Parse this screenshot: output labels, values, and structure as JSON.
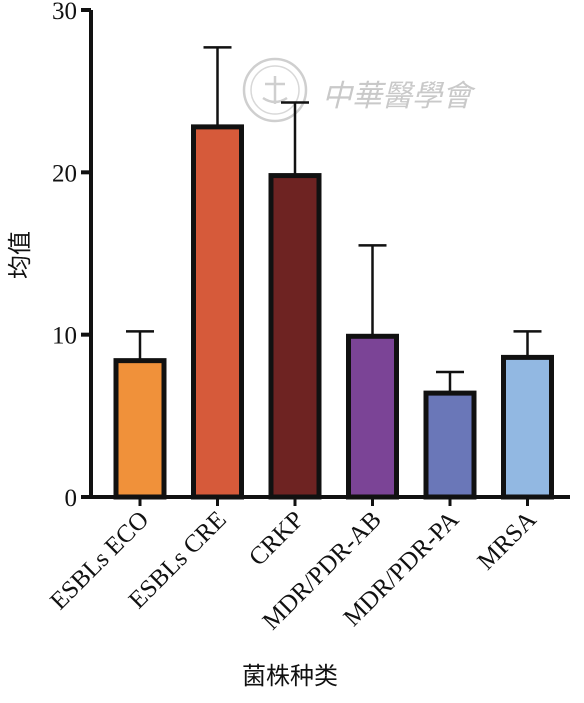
{
  "chart_data": {
    "type": "bar",
    "title": "",
    "xlabel": "菌株种类",
    "ylabel": "均值",
    "ylim": [
      0,
      30
    ],
    "yticks": [
      0,
      10,
      20,
      30
    ],
    "grid": false,
    "categories": [
      "ESBLs ECO",
      "ESBLs CRE",
      "CRKP",
      "MDR/PDR-AB",
      "MDR/PDR-PA",
      "MRSA"
    ],
    "values": [
      8.4,
      22.8,
      19.8,
      9.9,
      6.4,
      8.6
    ],
    "error_upper": [
      10.2,
      27.7,
      24.3,
      15.5,
      7.7,
      10.2
    ],
    "colors": [
      "#f0913a",
      "#d65a3a",
      "#6e2322",
      "#7b4496",
      "#6a77b8",
      "#92b8e2"
    ]
  },
  "watermark": {
    "text": "中華醫學會",
    "seal_icon": "seal-icon"
  }
}
